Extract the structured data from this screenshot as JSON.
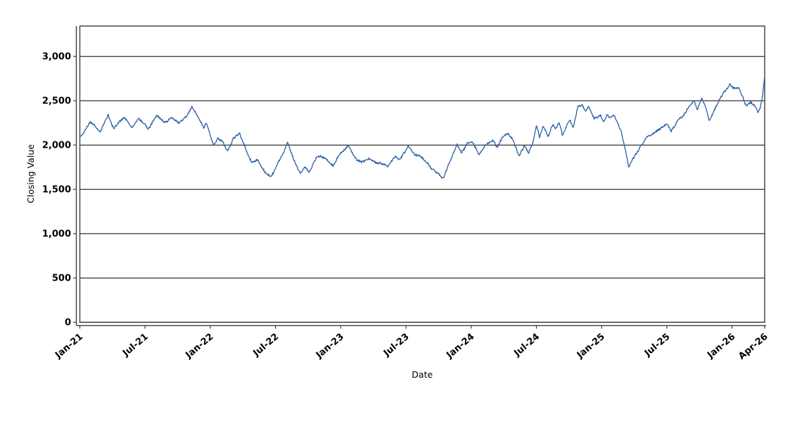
{
  "chart_data": {
    "type": "line",
    "title": "",
    "xlabel": "Date",
    "ylabel": "Closing Value",
    "legend": "none",
    "grid": "horizontal-only",
    "x_axis": {
      "start_label": "Jan-21",
      "end_label": "Apr-26",
      "tick_labels": [
        "Jan-21",
        "Jul-21",
        "Jan-22",
        "Jul-22",
        "Jan-23",
        "Jul-23",
        "Jan-24",
        "Jul-24",
        "Jan-25",
        "Jul-25",
        "Jan-26",
        "Apr-26"
      ],
      "tick_month_offsets": [
        0,
        6,
        12,
        18,
        24,
        30,
        36,
        42,
        48,
        54,
        60,
        63
      ],
      "range_months": [
        0,
        63
      ],
      "label_rotation_deg": -40
    },
    "y_axis": {
      "tick_values": [
        0,
        500,
        1000,
        1500,
        2000,
        2500,
        3000
      ],
      "tick_labels": [
        "0",
        "500",
        "1,000",
        "1,500",
        "2,000",
        "2,500",
        "3,000"
      ],
      "ylim": [
        0,
        3340
      ],
      "grid_interval": 500
    },
    "series": [
      {
        "name": "Closing Value",
        "color": "#2d5fa6",
        "line_width": 1.3,
        "noise_amplitude": 11,
        "anchors_month_value": [
          [
            0.0,
            2090
          ],
          [
            0.4,
            2150
          ],
          [
            1.0,
            2260
          ],
          [
            1.9,
            2150
          ],
          [
            2.6,
            2350
          ],
          [
            3.1,
            2190
          ],
          [
            3.6,
            2260
          ],
          [
            4.1,
            2310
          ],
          [
            4.8,
            2200
          ],
          [
            5.4,
            2290
          ],
          [
            6.0,
            2230
          ],
          [
            6.3,
            2175
          ],
          [
            7.1,
            2345
          ],
          [
            7.8,
            2250
          ],
          [
            8.4,
            2310
          ],
          [
            9.1,
            2250
          ],
          [
            9.8,
            2310
          ],
          [
            10.3,
            2435
          ],
          [
            11.0,
            2290
          ],
          [
            11.4,
            2180
          ],
          [
            11.6,
            2250
          ],
          [
            12.0,
            2100
          ],
          [
            12.3,
            2000
          ],
          [
            12.7,
            2080
          ],
          [
            13.1,
            2055
          ],
          [
            13.6,
            1930
          ],
          [
            14.1,
            2080
          ],
          [
            14.7,
            2130
          ],
          [
            15.3,
            1930
          ],
          [
            15.8,
            1800
          ],
          [
            16.4,
            1830
          ],
          [
            17.0,
            1700
          ],
          [
            17.6,
            1650
          ],
          [
            18.2,
            1790
          ],
          [
            18.7,
            1900
          ],
          [
            19.1,
            2030
          ],
          [
            19.7,
            1820
          ],
          [
            20.3,
            1680
          ],
          [
            20.7,
            1750
          ],
          [
            21.1,
            1690
          ],
          [
            21.9,
            1880
          ],
          [
            22.5,
            1850
          ],
          [
            23.3,
            1760
          ],
          [
            24.0,
            1900
          ],
          [
            24.7,
            1990
          ],
          [
            25.4,
            1840
          ],
          [
            26.0,
            1800
          ],
          [
            26.6,
            1850
          ],
          [
            27.3,
            1800
          ],
          [
            28.3,
            1760
          ],
          [
            29.0,
            1880
          ],
          [
            29.4,
            1830
          ],
          [
            30.2,
            1975
          ],
          [
            30.8,
            1900
          ],
          [
            31.5,
            1870
          ],
          [
            32.3,
            1740
          ],
          [
            33.0,
            1680
          ],
          [
            33.4,
            1630
          ],
          [
            34.0,
            1800
          ],
          [
            34.7,
            2000
          ],
          [
            35.1,
            1915
          ],
          [
            35.7,
            2030
          ],
          [
            36.2,
            2020
          ],
          [
            36.7,
            1890
          ],
          [
            37.3,
            2010
          ],
          [
            38.0,
            2060
          ],
          [
            38.4,
            1970
          ],
          [
            38.9,
            2100
          ],
          [
            39.4,
            2125
          ],
          [
            39.9,
            2050
          ],
          [
            40.4,
            1865
          ],
          [
            40.9,
            1990
          ],
          [
            41.3,
            1915
          ],
          [
            41.7,
            2030
          ],
          [
            42.0,
            2230
          ],
          [
            42.3,
            2090
          ],
          [
            42.6,
            2215
          ],
          [
            43.1,
            2090
          ],
          [
            43.5,
            2230
          ],
          [
            43.8,
            2185
          ],
          [
            44.1,
            2260
          ],
          [
            44.4,
            2110
          ],
          [
            44.8,
            2230
          ],
          [
            45.1,
            2285
          ],
          [
            45.4,
            2185
          ],
          [
            45.8,
            2435
          ],
          [
            46.2,
            2450
          ],
          [
            46.5,
            2380
          ],
          [
            46.8,
            2440
          ],
          [
            47.3,
            2300
          ],
          [
            47.9,
            2330
          ],
          [
            48.2,
            2250
          ],
          [
            48.5,
            2350
          ],
          [
            48.8,
            2300
          ],
          [
            49.1,
            2340
          ],
          [
            49.5,
            2230
          ],
          [
            49.8,
            2150
          ],
          [
            50.1,
            1990
          ],
          [
            50.5,
            1765
          ],
          [
            51.1,
            1900
          ],
          [
            51.6,
            2000
          ],
          [
            52.2,
            2095
          ],
          [
            52.8,
            2140
          ],
          [
            53.5,
            2190
          ],
          [
            54.0,
            2240
          ],
          [
            54.4,
            2160
          ],
          [
            54.9,
            2260
          ],
          [
            55.5,
            2330
          ],
          [
            56.1,
            2440
          ],
          [
            56.5,
            2490
          ],
          [
            56.8,
            2400
          ],
          [
            57.2,
            2530
          ],
          [
            57.6,
            2430
          ],
          [
            57.9,
            2270
          ],
          [
            58.3,
            2370
          ],
          [
            58.7,
            2480
          ],
          [
            59.3,
            2610
          ],
          [
            59.8,
            2690
          ],
          [
            60.2,
            2650
          ],
          [
            60.6,
            2660
          ],
          [
            60.9,
            2570
          ],
          [
            61.3,
            2440
          ],
          [
            61.7,
            2490
          ],
          [
            62.1,
            2450
          ],
          [
            62.4,
            2370
          ],
          [
            62.6,
            2420
          ],
          [
            62.8,
            2560
          ],
          [
            63.0,
            2780
          ]
        ]
      }
    ],
    "colors": {
      "line": "#2d5fa6",
      "gridline": "#000000",
      "frame": "#3c3c3c",
      "text": "#000000",
      "background": "#ffffff"
    }
  }
}
